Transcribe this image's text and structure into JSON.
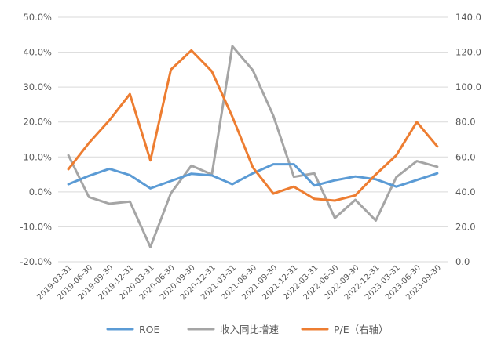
{
  "chart_data": {
    "type": "line",
    "categories": [
      "2019-03-31",
      "2019-06-30",
      "2019-09-30",
      "2019-12-31",
      "2020-03-31",
      "2020-06-30",
      "2020-09-30",
      "2020-12-31",
      "2021-03-31",
      "2021-06-30",
      "2021-09-30",
      "2021-12-31",
      "2022-03-31",
      "2022-06-30",
      "2022-09-30",
      "2022-12-31",
      "2023-03-31",
      "2023-06-30",
      "2023-09-30"
    ],
    "y_left": {
      "ticks": [
        -0.2,
        -0.1,
        0.0,
        0.1,
        0.2,
        0.3,
        0.4,
        0.5
      ],
      "tick_labels": [
        "-20.0%",
        "-10.0%",
        "0.0%",
        "10.0%",
        "20.0%",
        "30.0%",
        "40.0%",
        "50.0%"
      ],
      "ylim": [
        -0.2,
        0.5
      ]
    },
    "y_right": {
      "ticks": [
        0,
        20,
        40,
        60,
        80,
        100,
        120,
        140
      ],
      "tick_labels": [
        "0.0",
        "20.0",
        "40.0",
        "60.0",
        "80.0",
        "100.0",
        "120.0",
        "140.0"
      ],
      "ylim": [
        0,
        140
      ]
    },
    "grid": true,
    "legend_position": "bottom",
    "series": [
      {
        "name": "ROE",
        "axis": "left",
        "color": "#5B9BD5",
        "values": [
          0.022,
          0.046,
          0.066,
          0.048,
          0.01,
          0.031,
          0.052,
          0.047,
          0.022,
          0.053,
          0.079,
          0.079,
          0.018,
          0.033,
          0.044,
          0.036,
          0.015,
          0.034,
          0.053
        ]
      },
      {
        "name": "收入同比增速",
        "axis": "left",
        "color": "#A5A5A5",
        "values": [
          0.105,
          -0.015,
          -0.034,
          -0.028,
          -0.158,
          -0.004,
          0.075,
          0.05,
          0.417,
          0.348,
          0.218,
          0.043,
          0.053,
          -0.075,
          -0.023,
          -0.082,
          0.042,
          0.088,
          0.072
        ]
      },
      {
        "name": "P/E（右轴）",
        "axis": "right",
        "color": "#ED7D31",
        "values": [
          53,
          68,
          81,
          96,
          58,
          110,
          121,
          109,
          83,
          54,
          39,
          43,
          36,
          35,
          38,
          50,
          61,
          80,
          66
        ]
      }
    ]
  }
}
